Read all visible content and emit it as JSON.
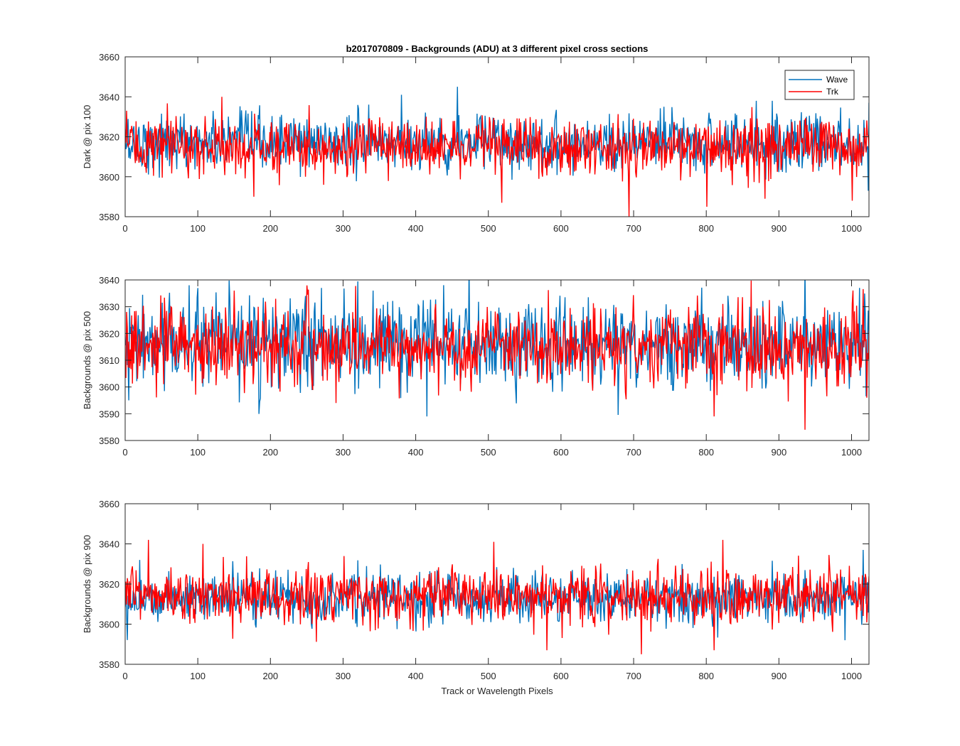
{
  "figure": {
    "title": "b2017070809 - Backgrounds (ADU) at 3 different pixel cross sections",
    "xlabel": "Track or Wavelength Pixels"
  },
  "legend": {
    "placement": "top-right of first panel",
    "entries": [
      {
        "label": "Wave",
        "color": "#0072bd"
      },
      {
        "label": "Trk",
        "color": "#ff0000"
      }
    ]
  },
  "chart_data": [
    {
      "type": "line",
      "title": "b2017070809 - Backgrounds (ADU) at 3 different pixel cross sections",
      "ylabel": "Dark @ pix 100",
      "xlabel": "",
      "xlim": [
        0,
        1024
      ],
      "ylim": [
        3580,
        3660
      ],
      "xticks": [
        0,
        100,
        200,
        300,
        400,
        500,
        600,
        700,
        800,
        900,
        1000
      ],
      "yticks": [
        3580,
        3600,
        3620,
        3640,
        3660
      ],
      "grid": false,
      "series": [
        {
          "name": "Wave",
          "color": "#0072bd",
          "n_points": 1024,
          "approx_mean": 3617,
          "approx_std": 7,
          "notable_points": [
            [
              457,
              3645
            ],
            [
              380,
              3641
            ],
            [
              868,
              3638
            ],
            [
              890,
              3638
            ],
            [
              1023,
              3637
            ],
            [
              1022,
              3593
            ]
          ]
        },
        {
          "name": "Trk",
          "color": "#ff0000",
          "n_points": 1024,
          "approx_mean": 3615,
          "approx_std": 7,
          "notable_points": [
            [
              133,
              3640
            ],
            [
              2,
              3633
            ],
            [
              693,
              3580
            ],
            [
              800,
              3585
            ],
            [
              518,
              3587
            ],
            [
              1000,
              3588
            ],
            [
              177,
              3590
            ],
            [
              880,
              3589
            ]
          ]
        }
      ]
    },
    {
      "type": "line",
      "ylabel": "Backgrounds @ pix 500",
      "xlabel": "",
      "xlim": [
        0,
        1024
      ],
      "ylim": [
        3580,
        3640
      ],
      "xticks": [
        0,
        100,
        200,
        300,
        400,
        500,
        600,
        700,
        800,
        900,
        1000
      ],
      "yticks": [
        3580,
        3590,
        3600,
        3610,
        3620,
        3630,
        3640
      ],
      "grid": false,
      "series": [
        {
          "name": "Wave",
          "color": "#0072bd",
          "n_points": 1024,
          "approx_mean": 3616,
          "approx_std": 8,
          "notable_points": [
            [
              88,
              3638
            ],
            [
              1010,
              3637
            ],
            [
              270,
              3637
            ],
            [
              415,
              3589
            ],
            [
              5,
              3595
            ]
          ]
        },
        {
          "name": "Trk",
          "color": "#ff0000",
          "n_points": 1024,
          "approx_mean": 3615,
          "approx_std": 7,
          "notable_points": [
            [
              150,
              3636
            ],
            [
              935,
              3584
            ],
            [
              810,
              3589
            ],
            [
              290,
              3594
            ],
            [
              1020,
              3596
            ]
          ]
        }
      ]
    },
    {
      "type": "line",
      "ylabel": "Backgrounds @ pix 900",
      "xlabel": "Track or Wavelength Pixels",
      "xlim": [
        0,
        1024
      ],
      "ylim": [
        3580,
        3660
      ],
      "xticks": [
        0,
        100,
        200,
        300,
        400,
        500,
        600,
        700,
        800,
        900,
        1000
      ],
      "yticks": [
        3580,
        3600,
        3620,
        3640,
        3660
      ],
      "grid": false,
      "series": [
        {
          "name": "Wave",
          "color": "#0072bd",
          "n_points": 1024,
          "approx_mean": 3613,
          "approx_std": 6,
          "notable_points": [
            [
              1015,
              3637
            ],
            [
              20,
              3632
            ],
            [
              990,
              3592
            ]
          ]
        },
        {
          "name": "Trk",
          "color": "#ff0000",
          "n_points": 1024,
          "approx_mean": 3614,
          "approx_std": 7,
          "notable_points": [
            [
              32,
              3642
            ],
            [
              822,
              3642
            ],
            [
              107,
              3640
            ],
            [
              507,
              3641
            ],
            [
              710,
              3585
            ],
            [
              580,
              3587
            ],
            [
              810,
              3587
            ]
          ]
        }
      ]
    }
  ]
}
